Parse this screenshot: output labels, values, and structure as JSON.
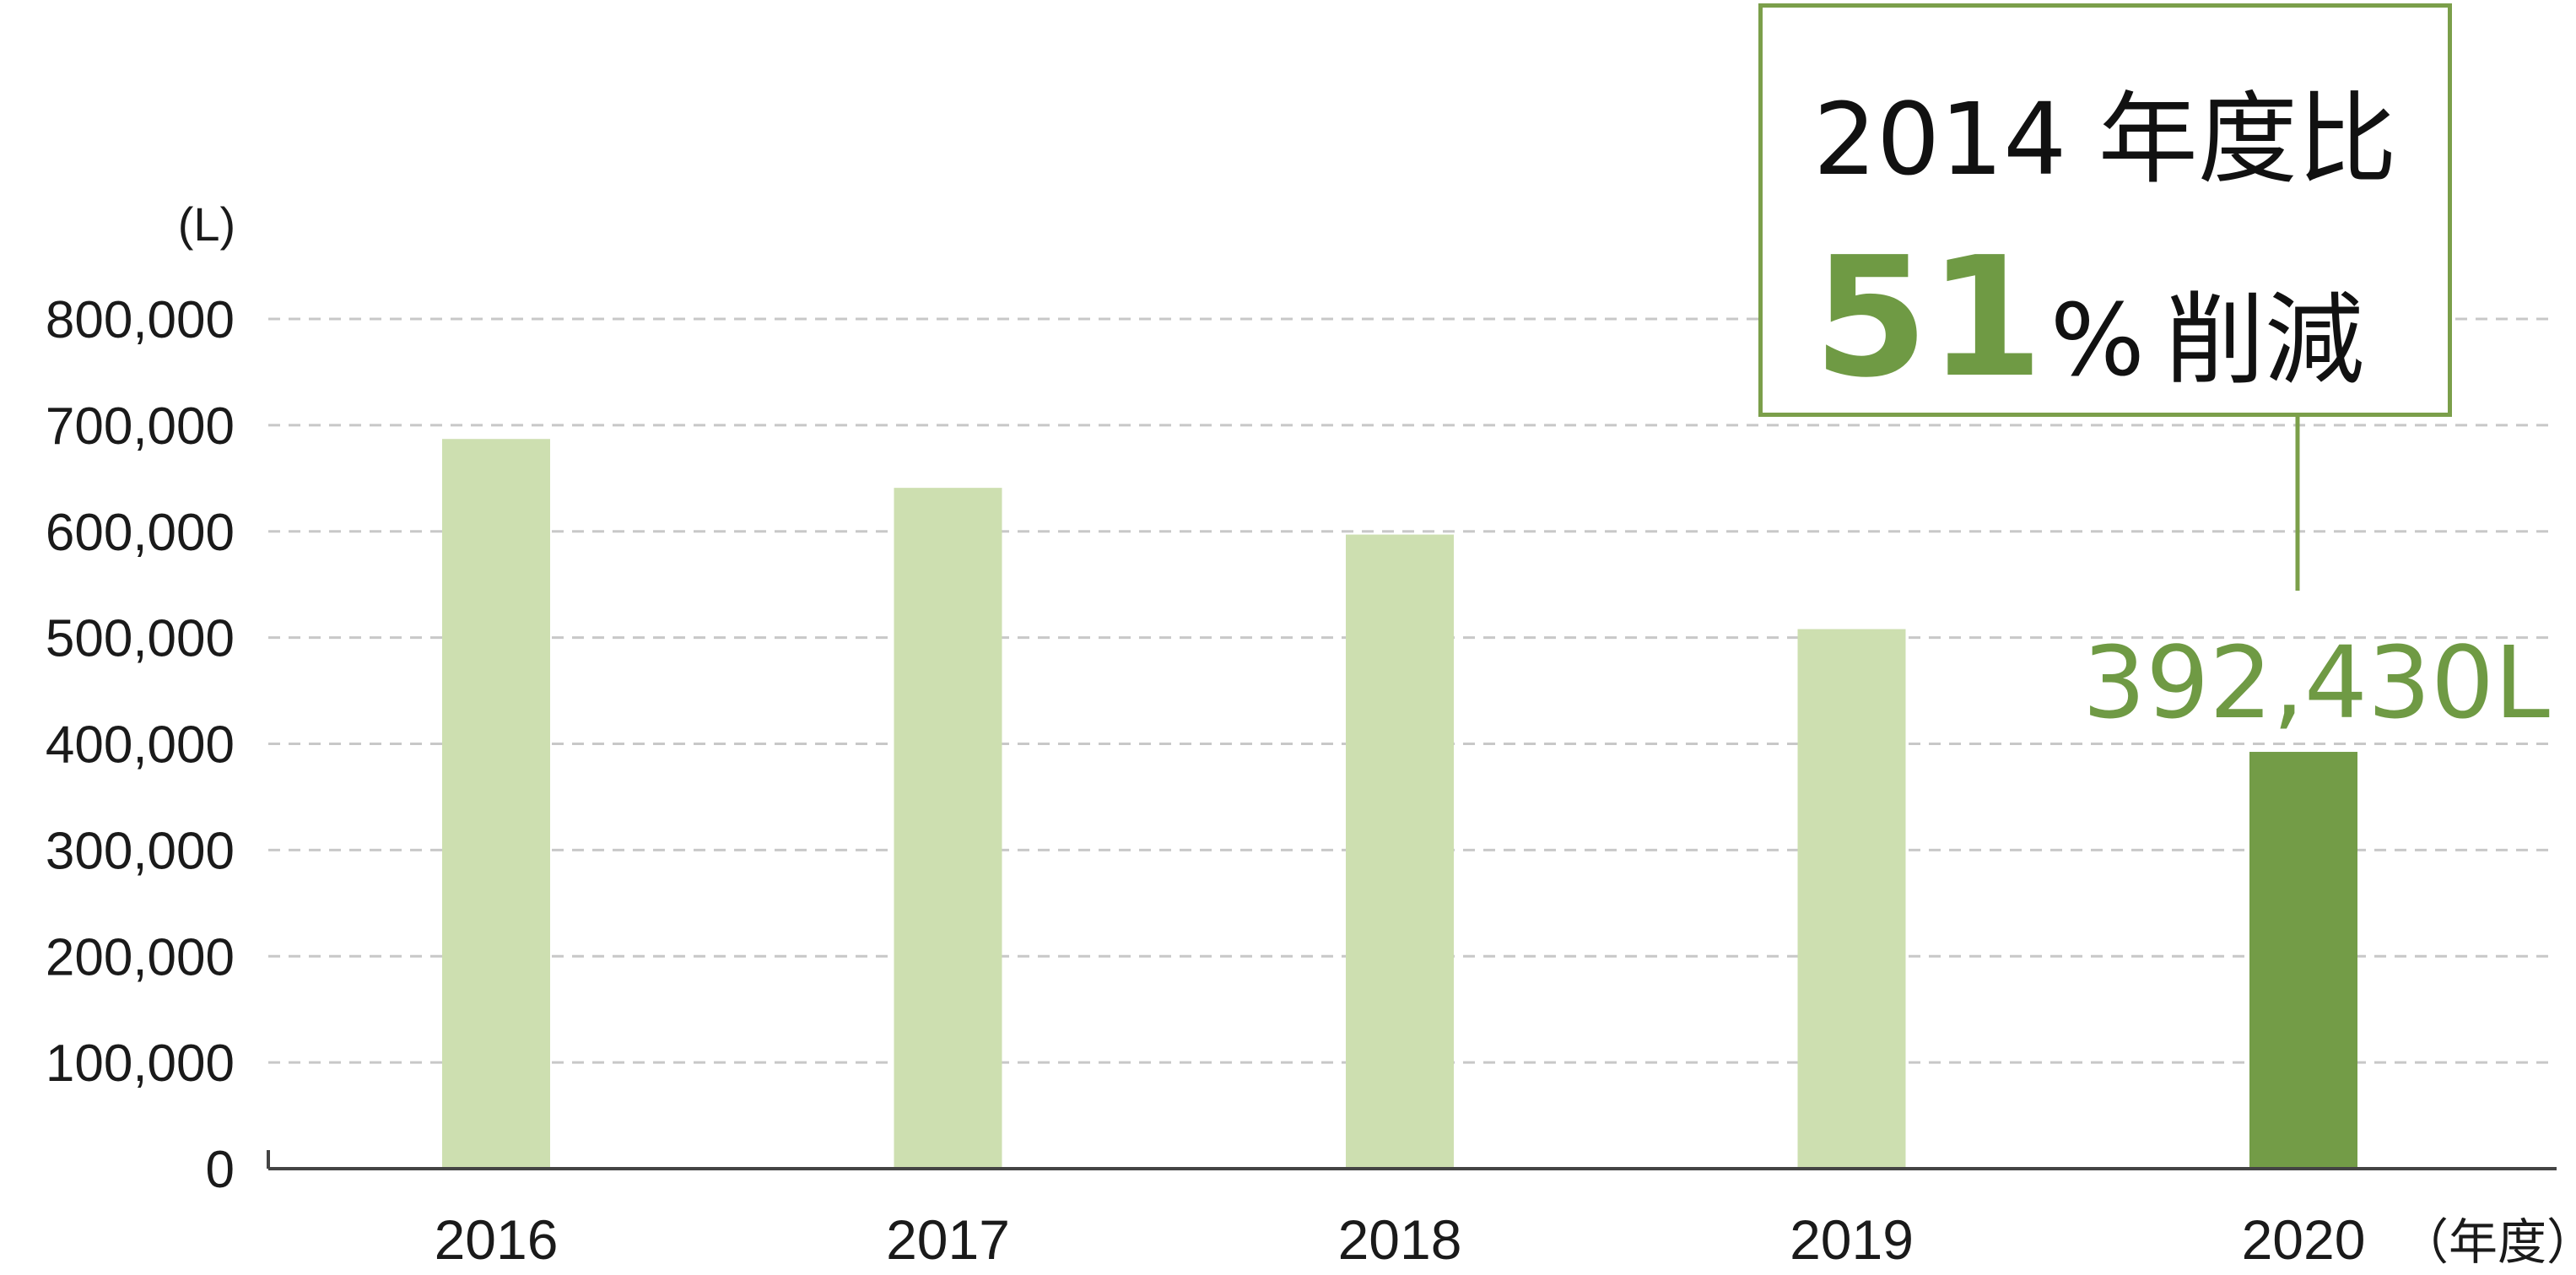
{
  "chart_data": {
    "type": "bar",
    "categories": [
      "2016",
      "2017",
      "2018",
      "2019",
      "2020"
    ],
    "values": [
      687000,
      641000,
      597000,
      508000,
      392430
    ],
    "unit_label": "(L)",
    "xlabel": "（年度）",
    "ylabel": "",
    "ylim": [
      0,
      800000
    ],
    "yticks": [
      "0",
      "100,000",
      "200,000",
      "300,000",
      "400,000",
      "500,000",
      "600,000",
      "700,000",
      "800,000"
    ],
    "highlight_index": 4,
    "highlight_label": "392,430L",
    "grid": true,
    "colors": {
      "bar": "#cddfb0",
      "highlight_bar": "#739c47",
      "highlight_text": "#6f9a44",
      "grid": "#c8c8c8",
      "axis": "#444444"
    }
  },
  "annotation": {
    "line1": "2014 年度比",
    "big_number": "51",
    "percent_sign": "%",
    "reduction_text": "削減",
    "border_color": "#7b9f4a"
  }
}
